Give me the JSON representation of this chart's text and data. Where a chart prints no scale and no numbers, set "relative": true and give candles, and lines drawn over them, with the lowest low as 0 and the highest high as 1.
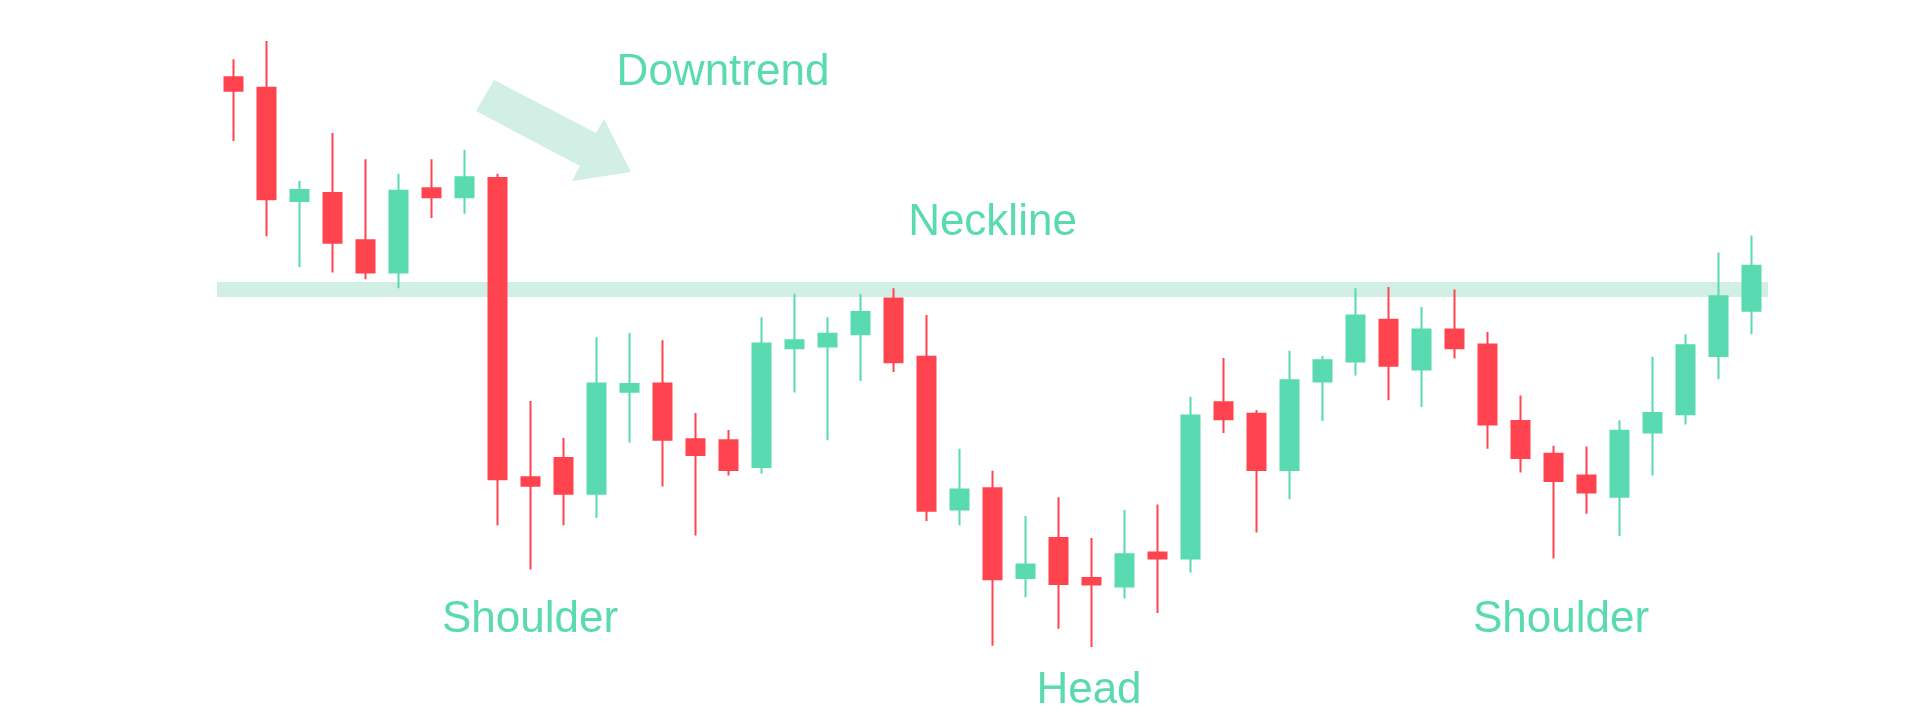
{
  "chart_data": {
    "type": "candlestick",
    "relative": true,
    "categories": [
      null,
      null,
      null,
      null,
      null,
      null,
      null,
      null,
      null,
      null,
      null,
      null,
      null,
      null,
      null,
      null,
      null,
      null,
      null,
      null,
      null,
      null,
      null,
      null,
      null,
      null,
      null,
      null,
      null,
      null,
      null,
      null,
      null,
      null,
      null,
      null,
      null,
      null,
      null,
      null,
      null,
      null,
      null,
      null,
      null,
      null,
      null
    ],
    "ohlc": [
      [
        0.94,
        0.97,
        0.835,
        0.918
      ],
      [
        0.923,
        1.0,
        0.678,
        0.739
      ],
      [
        0.736,
        0.769,
        0.627,
        0.754
      ],
      [
        0.749,
        0.848,
        0.618,
        0.667
      ],
      [
        0.671,
        0.805,
        0.607,
        0.618
      ],
      [
        0.618,
        0.781,
        0.592,
        0.753
      ],
      [
        0.757,
        0.805,
        0.708,
        0.742
      ],
      [
        0.742,
        0.82,
        0.715,
        0.775
      ],
      [
        0.774,
        0.781,
        0.201,
        0.277
      ],
      [
        0.28,
        0.406,
        0.128,
        0.266
      ],
      [
        0.312,
        0.345,
        0.201,
        0.253
      ],
      [
        0.253,
        0.511,
        0.213,
        0.435
      ],
      [
        0.421,
        0.518,
        0.337,
        0.434
      ],
      [
        0.435,
        0.506,
        0.265,
        0.342
      ],
      [
        0.343,
        0.386,
        0.184,
        0.317
      ],
      [
        0.341,
        0.358,
        0.283,
        0.292
      ],
      [
        0.297,
        0.544,
        0.286,
        0.501
      ],
      [
        0.493,
        0.583,
        0.42,
        0.506
      ],
      [
        0.496,
        0.544,
        0.341,
        0.517
      ],
      [
        0.516,
        0.583,
        0.439,
        0.553
      ],
      [
        0.575,
        0.592,
        0.454,
        0.47
      ],
      [
        0.479,
        0.548,
        0.208,
        0.225
      ],
      [
        0.227,
        0.327,
        0.201,
        0.26
      ],
      [
        0.262,
        0.291,
        0.002,
        0.112
      ],
      [
        0.114,
        0.216,
        0.082,
        0.136
      ],
      [
        0.18,
        0.247,
        0.03,
        0.104
      ],
      [
        0.114,
        0.18,
        0,
        0.103
      ],
      [
        0.1,
        0.226,
        0.08,
        0.153
      ],
      [
        0.156,
        0.235,
        0.056,
        0.146
      ],
      [
        0.146,
        0.413,
        0.123,
        0.382
      ],
      [
        0.404,
        0.477,
        0.353,
        0.376
      ],
      [
        0.385,
        0.391,
        0.189,
        0.292
      ],
      [
        0.292,
        0.489,
        0.244,
        0.44
      ],
      [
        0.438,
        0.48,
        0.373,
        0.473
      ],
      [
        0.471,
        0.592,
        0.448,
        0.547
      ],
      [
        0.54,
        0.594,
        0.407,
        0.464
      ],
      [
        0.458,
        0.561,
        0.396,
        0.524
      ],
      [
        0.524,
        0.59,
        0.476,
        0.493
      ],
      [
        0.499,
        0.52,
        0.327,
        0.367
      ],
      [
        0.373,
        0.415,
        0.288,
        0.312
      ],
      [
        0.319,
        0.332,
        0.146,
        0.274
      ],
      [
        0.283,
        0.331,
        0.22,
        0.255
      ],
      [
        0.248,
        0.374,
        0.183,
        0.357
      ],
      [
        0.354,
        0.479,
        0.283,
        0.386
      ],
      [
        0.384,
        0.516,
        0.367,
        0.498
      ],
      [
        0.48,
        0.651,
        0.442,
        0.579
      ],
      [
        0.555,
        0.679,
        0.516,
        0.629
      ]
    ],
    "colors": [
      "#ff444f",
      "#ff444f",
      "#59dab0",
      "#ff444f",
      "#ff444f",
      "#59dab0",
      "#ff444f",
      "#59dab0",
      "#ff444f",
      "#ff444f",
      "#ff444f",
      "#59dab0",
      "#59dab0",
      "#ff444f",
      "#ff444f",
      "#ff444f",
      "#59dab0",
      "#59dab0",
      "#59dab0",
      "#59dab0",
      "#ff444f",
      "#ff444f",
      "#59dab0",
      "#ff444f",
      "#59dab0",
      "#ff444f",
      "#ff444f",
      "#59dab0",
      "#ff444f",
      "#59dab0",
      "#ff444f",
      "#ff444f",
      "#59dab0",
      "#59dab0",
      "#59dab0",
      "#ff444f",
      "#59dab0",
      "#ff444f",
      "#ff444f",
      "#ff444f",
      "#ff444f",
      "#ff444f",
      "#59dab0",
      "#59dab0",
      "#59dab0",
      "#59dab0",
      "#59dab0"
    ],
    "ref_lines": [
      {
        "axis": "y",
        "value": 0.586,
        "label": "Neckline",
        "color": "#d1efe5"
      }
    ],
    "annotations": [
      "Downtrend",
      "Shoulder",
      "Head",
      "Shoulder"
    ]
  }
}
